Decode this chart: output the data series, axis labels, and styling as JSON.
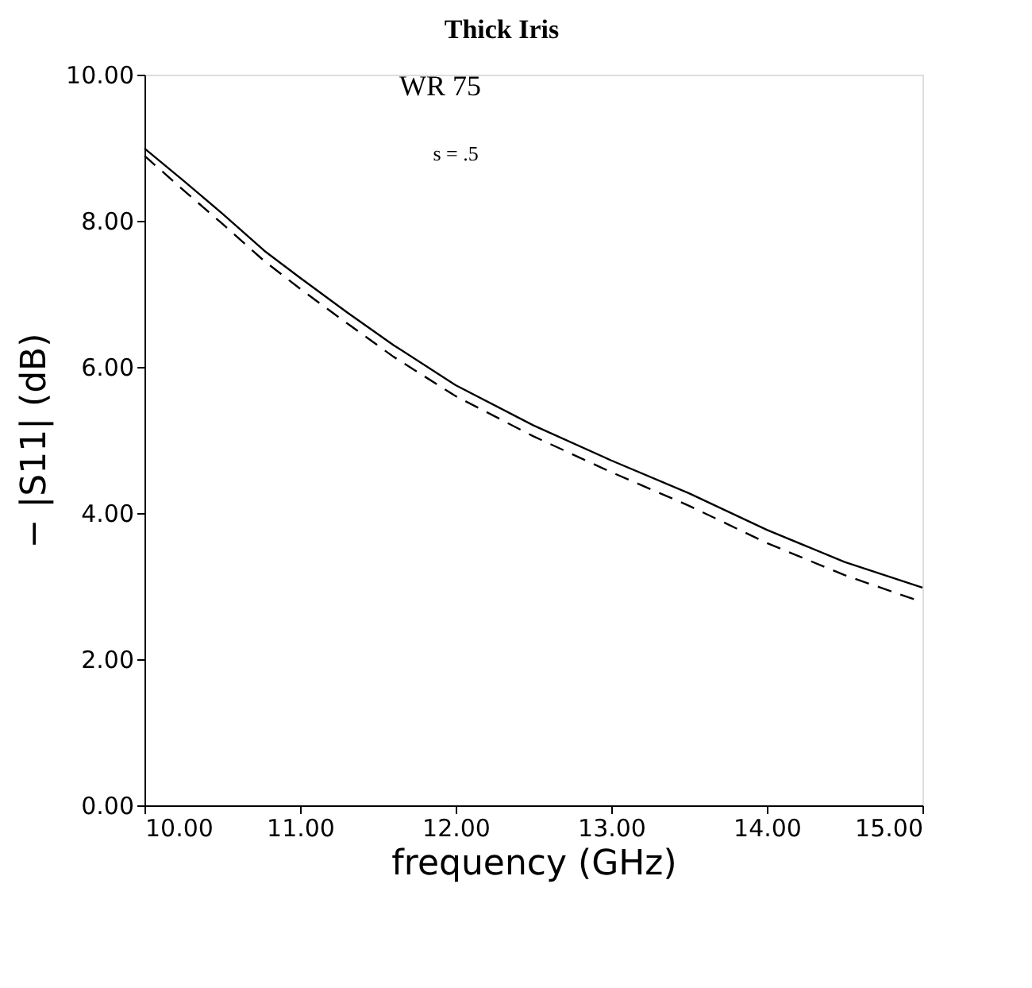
{
  "chart_data": {
    "type": "line",
    "title": "Thick Iris",
    "annotations": [
      "WR 75",
      "s = .5"
    ],
    "xlabel": "frequency  (GHz)",
    "ylabel": "−  |S11|   (dB)",
    "x": [
      10,
      10.25,
      10.5,
      10.77,
      11,
      11.3,
      11.6,
      12,
      12.5,
      13,
      13.5,
      14,
      14.5,
      15
    ],
    "series": [
      {
        "color": "#000000",
        "line_style": "solid",
        "values": [
          8.99,
          8.55,
          8.1,
          7.59,
          7.22,
          6.75,
          6.3,
          5.75,
          5.2,
          4.72,
          4.27,
          3.77,
          3.33,
          2.98
        ]
      },
      {
        "color": "#000000",
        "line_style": "dashed",
        "values": [
          8.89,
          8.42,
          7.96,
          7.45,
          7.07,
          6.6,
          6.14,
          5.6,
          5.05,
          4.56,
          4.1,
          3.59,
          3.15,
          2.78
        ]
      }
    ],
    "xlim": [
      10,
      15
    ],
    "ylim": [
      0,
      10
    ],
    "xticks": [
      {
        "value": 10,
        "label": "10.00"
      },
      {
        "value": 11,
        "label": "11.00"
      },
      {
        "value": 12,
        "label": "12.00"
      },
      {
        "value": 13,
        "label": "13.00"
      },
      {
        "value": 14,
        "label": "14.00"
      },
      {
        "value": 15,
        "label": "15.00"
      }
    ],
    "yticks": [
      {
        "value": 0,
        "label": "0.00"
      },
      {
        "value": 2,
        "label": "2.00"
      },
      {
        "value": 4,
        "label": "4.00"
      },
      {
        "value": 6,
        "label": "6.00"
      },
      {
        "value": 8,
        "label": "8.00"
      },
      {
        "value": 10,
        "label": "10.00"
      }
    ],
    "grid": false,
    "marker": "none"
  }
}
